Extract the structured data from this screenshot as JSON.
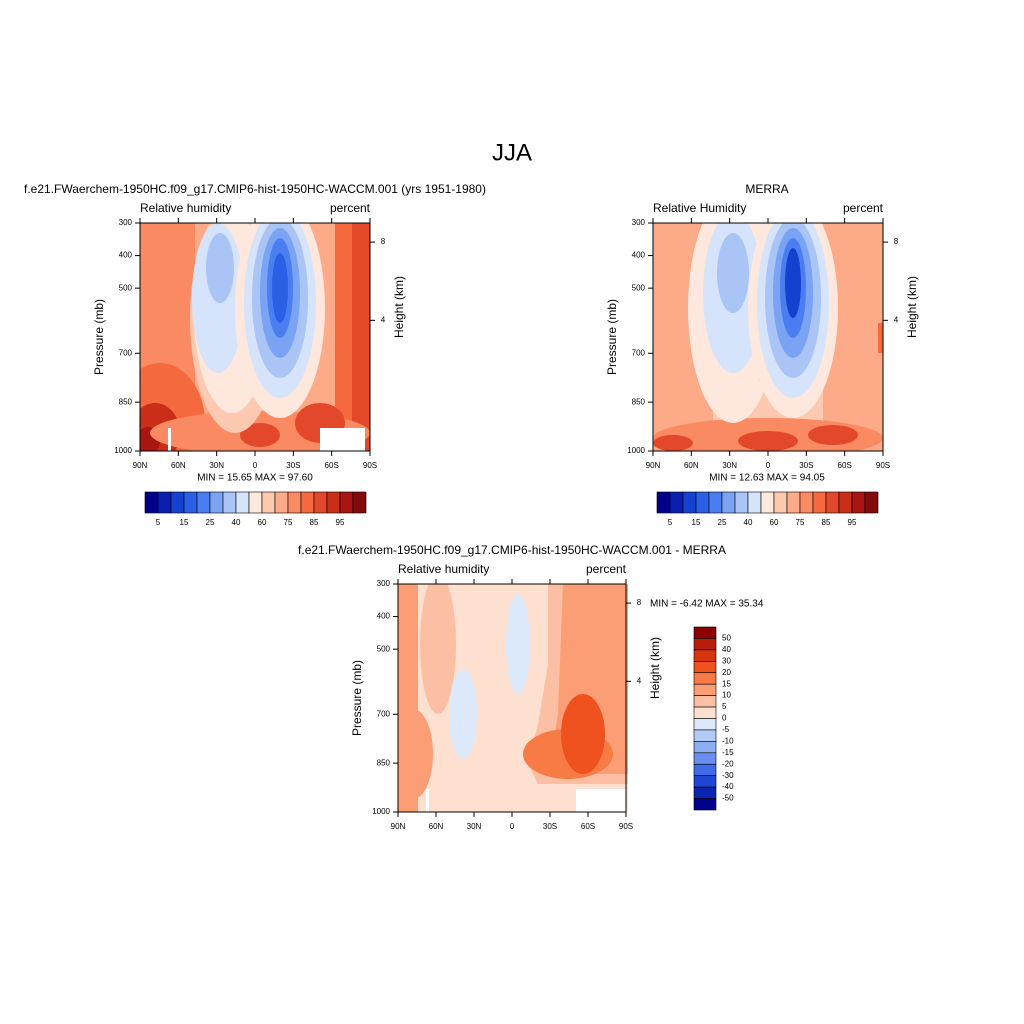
{
  "title": "JJA",
  "chart_data": [
    {
      "type": "contour",
      "title": "f.e21.FWaerchem-1950HC.f09_g17.CMIP6-hist-1950HC-WACCM.001 (yrs 1951-1980)",
      "left_label": "Relative humidity",
      "right_label": "percent",
      "ylabel": "Pressure (mb)",
      "y2label": "Height (km)",
      "xlim": [
        90,
        -90
      ],
      "xticks": [
        {
          "value": 90,
          "label": "90N"
        },
        {
          "value": 60,
          "label": "60N"
        },
        {
          "value": 30,
          "label": "30N"
        },
        0,
        {
          "value": -30,
          "label": "30S"
        },
        {
          "value": -60,
          "label": "60S"
        },
        {
          "value": -90,
          "label": "90S"
        }
      ],
      "ylim": [
        1000,
        300
      ],
      "yticks": [
        300,
        400,
        500,
        700,
        850,
        1000
      ],
      "y2ticks": [
        4,
        8
      ],
      "stats": "MIN =  15.65  MAX =  97.60",
      "colorbar": {
        "orientation": "horizontal",
        "colors": [
          "#00008a",
          "#0a1fb0",
          "#1541d1",
          "#2a5fe6",
          "#4a7ef0",
          "#7aa3f3",
          "#a9c4f5",
          "#d6e4fb",
          "#fee7dc",
          "#fdc9b1",
          "#fcaa88",
          "#fa8a61",
          "#f46a3e",
          "#e4482a",
          "#ca2d18",
          "#a91510",
          "#820b0b"
        ],
        "ticks": [
          5,
          15,
          25,
          40,
          60,
          75,
          85,
          95
        ]
      }
    },
    {
      "type": "contour",
      "title": "MERRA",
      "left_label": "Relative Humidity",
      "right_label": "percent",
      "ylabel": "Pressure (mb)",
      "y2label": "Height (km)",
      "xlim": [
        90,
        -90
      ],
      "xticks": [
        {
          "value": 90,
          "label": "90N"
        },
        {
          "value": 60,
          "label": "60N"
        },
        {
          "value": 30,
          "label": "30N"
        },
        0,
        {
          "value": -30,
          "label": "30S"
        },
        {
          "value": -60,
          "label": "60S"
        },
        {
          "value": -90,
          "label": "90S"
        }
      ],
      "ylim": [
        1000,
        300
      ],
      "yticks": [
        300,
        400,
        500,
        700,
        850,
        1000
      ],
      "y2ticks": [
        4,
        8
      ],
      "stats": "MIN =  12.63  MAX =  94.05",
      "colorbar": {
        "orientation": "horizontal",
        "colors": [
          "#00008a",
          "#0a1fb0",
          "#1541d1",
          "#2a5fe6",
          "#4a7ef0",
          "#7aa3f3",
          "#a9c4f5",
          "#d6e4fb",
          "#fee7dc",
          "#fdc9b1",
          "#fcaa88",
          "#fa8a61",
          "#f46a3e",
          "#e4482a",
          "#ca2d18",
          "#a91510",
          "#820b0b"
        ],
        "ticks": [
          5,
          15,
          25,
          40,
          60,
          75,
          85,
          95
        ]
      }
    },
    {
      "type": "contour",
      "title": "f.e21.FWaerchem-1950HC.f09_g17.CMIP6-hist-1950HC-WACCM.001 - MERRA",
      "left_label": "Relative humidity",
      "right_label": "percent",
      "ylabel": "Pressure (mb)",
      "y2label": "Height (km)",
      "xlim": [
        90,
        -90
      ],
      "xticks": [
        {
          "value": 90,
          "label": "90N"
        },
        {
          "value": 60,
          "label": "60N"
        },
        {
          "value": 30,
          "label": "30N"
        },
        0,
        {
          "value": -30,
          "label": "30S"
        },
        {
          "value": -60,
          "label": "60S"
        },
        {
          "value": -90,
          "label": "90S"
        }
      ],
      "ylim": [
        1000,
        300
      ],
      "yticks": [
        300,
        400,
        500,
        700,
        850,
        1000
      ],
      "y2ticks": [
        4,
        8
      ],
      "stats": "MIN =  -6.42  MAX =  35.34",
      "colorbar": {
        "orientation": "vertical",
        "colors": [
          "#8b0000",
          "#b81d0b",
          "#d8350d",
          "#f0521f",
          "#f87a45",
          "#fb9e76",
          "#fcbfa3",
          "#fee0d0",
          "#dce9fb",
          "#b3ccf6",
          "#8daef3",
          "#6a8ff0",
          "#3f6be6",
          "#1f46d4",
          "#0d24b0",
          "#00008a"
        ],
        "ticks": [
          50,
          40,
          30,
          20,
          15,
          10,
          5,
          0,
          -5,
          -10,
          -15,
          -20,
          -30,
          -40,
          -50
        ]
      }
    }
  ]
}
